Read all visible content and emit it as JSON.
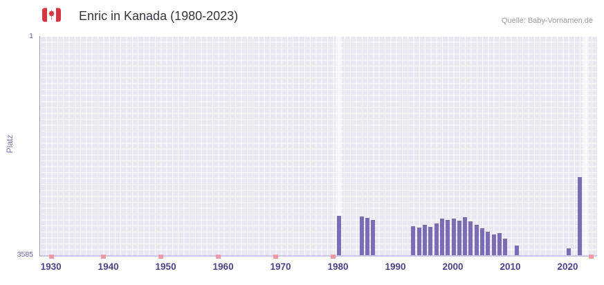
{
  "header": {
    "title": "Enric in Kanada (1980-2023)",
    "source": "Quelle: Baby-Vornamen.de",
    "flag_icon": "canada-flag"
  },
  "chart_data": {
    "type": "bar",
    "title": "Enric in Kanada (1980-2023)",
    "xlabel": "",
    "ylabel": "Platz",
    "y_axis": {
      "min": 1,
      "max": 3585,
      "inverted": true,
      "top_label": "1",
      "bottom_label": "3585"
    },
    "x_axis": {
      "min": 1928,
      "max": 2025,
      "ticks": [
        1930,
        1940,
        1950,
        1960,
        1970,
        1980,
        1990,
        2000,
        2010,
        2020
      ]
    },
    "grid": "on",
    "legend": "none",
    "bars": [
      {
        "year": 1980,
        "rank": 2945
      },
      {
        "year": 1984,
        "rank": 2955
      },
      {
        "year": 1985,
        "rank": 2970
      },
      {
        "year": 1986,
        "rank": 3005
      },
      {
        "year": 1993,
        "rank": 3105
      },
      {
        "year": 1994,
        "rank": 3135
      },
      {
        "year": 1995,
        "rank": 3090
      },
      {
        "year": 1996,
        "rank": 3120
      },
      {
        "year": 1997,
        "rank": 3060
      },
      {
        "year": 1998,
        "rank": 2980
      },
      {
        "year": 1999,
        "rank": 3010
      },
      {
        "year": 2000,
        "rank": 2985
      },
      {
        "year": 2001,
        "rank": 3015
      },
      {
        "year": 2002,
        "rank": 2960
      },
      {
        "year": 2003,
        "rank": 3025
      },
      {
        "year": 2004,
        "rank": 3085
      },
      {
        "year": 2005,
        "rank": 3140
      },
      {
        "year": 2006,
        "rank": 3195
      },
      {
        "year": 2007,
        "rank": 3245
      },
      {
        "year": 2008,
        "rank": 3220
      },
      {
        "year": 2009,
        "rank": 3310
      },
      {
        "year": 2011,
        "rank": 3430
      },
      {
        "year": 2020,
        "rank": 3470
      },
      {
        "year": 2022,
        "rank": 2310
      }
    ],
    "no_rank_years": [
      1930,
      1939,
      1949,
      1959,
      1969,
      1979,
      2024
    ],
    "highlight_years": [
      1980,
      2023
    ],
    "colors": {
      "bar": "#7c6cb3",
      "plot_bg": "#e9e7f2",
      "grid": "#ffffff",
      "highlight": "rgba(255,255,255,0.55)",
      "no_rank": "#f09aa3",
      "axis_line": "#9a8fcb",
      "baseline": "#ccc5e8",
      "x_tick_label": "#4a4088",
      "y_tick_label": "#6d63a9",
      "title": "#35353d",
      "source": "#9a9aa0",
      "flag_red": "#d8343f"
    }
  }
}
